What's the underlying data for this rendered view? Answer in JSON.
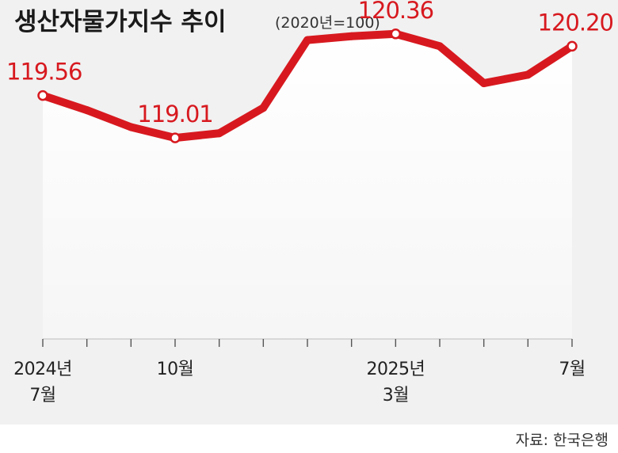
{
  "chart_data": {
    "type": "line",
    "title": "생산자물가지수 추이",
    "subtitle": "(2020년=100)",
    "series": [
      {
        "values": [
          119.56,
          119.37,
          119.15,
          119.01,
          119.07,
          119.4,
          120.28,
          120.33,
          120.36,
          120.2,
          119.72,
          119.83,
          120.2
        ]
      }
    ],
    "x_labels": [
      {
        "index": 0,
        "lines": [
          "2024년",
          "7월"
        ]
      },
      {
        "index": 3,
        "lines": [
          "10월"
        ]
      },
      {
        "index": 8,
        "lines": [
          "2025년",
          "3월"
        ]
      },
      {
        "index": 12,
        "lines": [
          "7월"
        ]
      }
    ],
    "data_labels": [
      {
        "index": 0,
        "text": "119.56"
      },
      {
        "index": 3,
        "text": "119.01"
      },
      {
        "index": 8,
        "text": "120.36"
      },
      {
        "index": 12,
        "text": "120.20"
      }
    ],
    "ylim": [
      116.4,
      120.8
    ],
    "line_color": "#d7191f",
    "source": "자료: 한국은행"
  }
}
